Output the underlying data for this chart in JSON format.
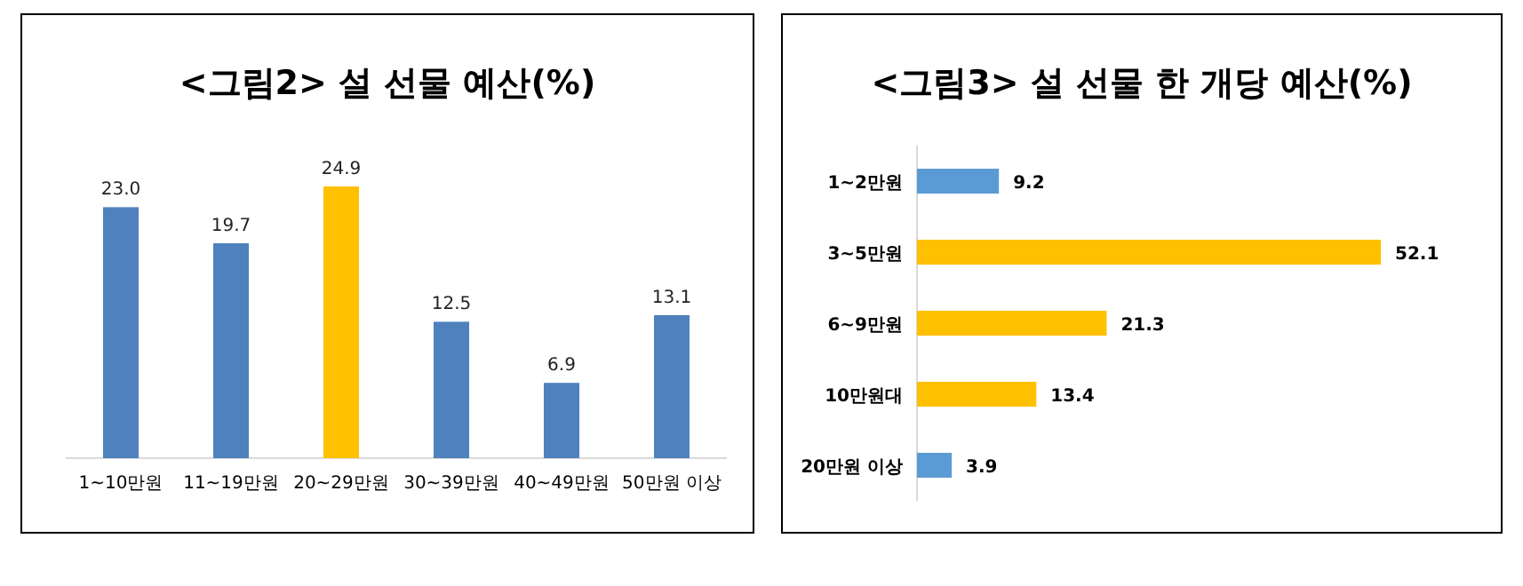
{
  "chart_data": [
    {
      "type": "bar",
      "title": "<그림2> 설 선물 예산(%)",
      "categories": [
        "1~10만원",
        "11~19만원",
        "20~29만원",
        "30~39만원",
        "40~49만원",
        "50만원 이상"
      ],
      "values": [
        23.0,
        19.7,
        24.9,
        12.5,
        6.9,
        13.1
      ],
      "colors": [
        "#4f81bd",
        "#4f81bd",
        "#ffc000",
        "#4f81bd",
        "#4f81bd",
        "#4f81bd"
      ],
      "data_labels": true,
      "value_labels": [
        "23.0",
        "19.7",
        "24.9",
        "12.5",
        "6.9",
        "13.1"
      ]
    },
    {
      "type": "bar",
      "orientation": "horizontal",
      "title": "<그림3> 설 선물 한 개당 예산(%)",
      "categories": [
        "1~2만원",
        "3~5만원",
        "6~9만원",
        "10만원대",
        "20만원 이상"
      ],
      "values": [
        9.2,
        52.1,
        21.3,
        13.4,
        3.9
      ],
      "colors": [
        "#5b9bd5",
        "#ffc000",
        "#ffc000",
        "#ffc000",
        "#5b9bd5"
      ],
      "data_labels": true
    }
  ]
}
